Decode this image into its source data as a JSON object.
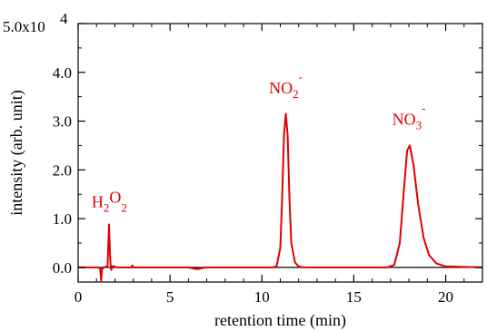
{
  "chart_data": {
    "type": "line",
    "title": "",
    "xlabel": "retention time (min)",
    "ylabel": "intensity (arb. unit)",
    "xlim": [
      0,
      22
    ],
    "ylim": [
      -3000,
      50000
    ],
    "x_ticks": [
      0,
      5,
      10,
      15,
      20
    ],
    "x_tick_labels": [
      "0",
      "5",
      "10",
      "15",
      "20"
    ],
    "y_ticks": [
      0,
      10000,
      20000,
      30000,
      40000,
      50000
    ],
    "y_tick_labels": [
      "0.0",
      "1.0",
      "2.0",
      "3.0",
      "4.0",
      "5.0x10"
    ],
    "y_exponent": "4",
    "grid": false,
    "baseline": 0,
    "colors": {
      "series": "#e00000",
      "axes": "#000000",
      "baseline": "#000000"
    },
    "series": [
      {
        "color": "#e00000",
        "points": [
          [
            0,
            0
          ],
          [
            1.1,
            0
          ],
          [
            1.2,
            -300
          ],
          [
            1.25,
            -2700
          ],
          [
            1.3,
            -400
          ],
          [
            1.4,
            0
          ],
          [
            1.6,
            300
          ],
          [
            1.68,
            8800
          ],
          [
            1.75,
            1200
          ],
          [
            1.8,
            -500
          ],
          [
            1.9,
            300
          ],
          [
            2.1,
            0
          ],
          [
            2.9,
            0
          ],
          [
            2.95,
            400
          ],
          [
            3.0,
            0
          ],
          [
            6.0,
            0
          ],
          [
            6.3,
            -250
          ],
          [
            6.5,
            -350
          ],
          [
            6.7,
            -200
          ],
          [
            6.9,
            0
          ],
          [
            10.6,
            0
          ],
          [
            10.8,
            300
          ],
          [
            11.0,
            4000
          ],
          [
            11.1,
            14000
          ],
          [
            11.2,
            27000
          ],
          [
            11.3,
            31500
          ],
          [
            11.4,
            27000
          ],
          [
            11.5,
            14000
          ],
          [
            11.6,
            5000
          ],
          [
            11.8,
            1000
          ],
          [
            12.0,
            200
          ],
          [
            12.3,
            0
          ],
          [
            16.8,
            0
          ],
          [
            17.2,
            500
          ],
          [
            17.5,
            5000
          ],
          [
            17.75,
            17000
          ],
          [
            17.9,
            24000
          ],
          [
            18.05,
            25000
          ],
          [
            18.25,
            21000
          ],
          [
            18.5,
            13000
          ],
          [
            18.8,
            6000
          ],
          [
            19.1,
            2500
          ],
          [
            19.5,
            800
          ],
          [
            20.0,
            200
          ],
          [
            22,
            0
          ]
        ]
      }
    ],
    "annotations": [
      {
        "base": "H",
        "sub1": "2",
        "mid": "O",
        "sub2": "2",
        "sup": "",
        "x": 1.7,
        "y": 9000
      },
      {
        "base": "NO",
        "sub1": "2",
        "mid": "",
        "sub2": "",
        "sup": "-",
        "x": 11.3,
        "y": 32000
      },
      {
        "base": "NO",
        "sub1": "3",
        "mid": "",
        "sub2": "",
        "sup": "-",
        "x": 18.0,
        "y": 25500
      }
    ]
  }
}
